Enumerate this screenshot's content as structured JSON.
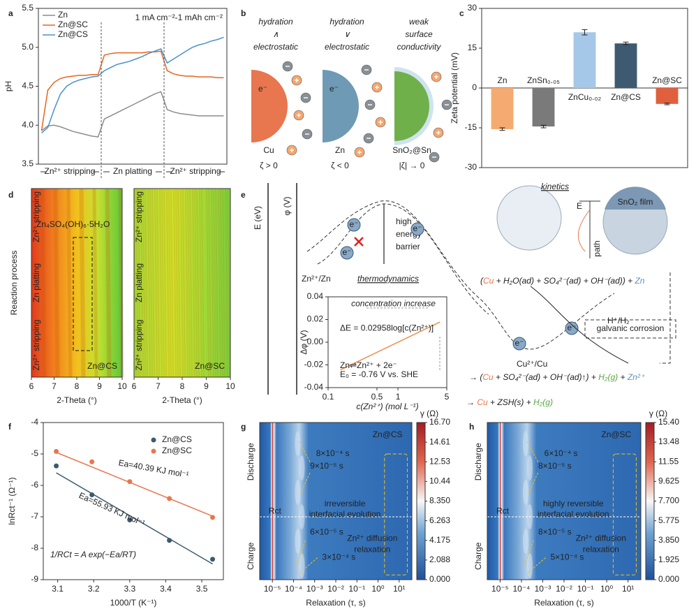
{
  "panel_labels": [
    "a",
    "b",
    "c",
    "d",
    "e",
    "f",
    "g",
    "h"
  ],
  "panel_b": {
    "columns": [
      {
        "top": [
          "hydration",
          "∧",
          "electrostatic"
        ],
        "material": "Cu",
        "zeta": "ζ > 0",
        "color": "#e8764e"
      },
      {
        "top": [
          "hydration",
          "∨",
          "electrostatic"
        ],
        "material": "Zn",
        "zeta": "ζ < 0",
        "color": "#6f9ab5"
      },
      {
        "top": [
          "weak",
          "surface",
          "conductivity"
        ],
        "material": "SnO₂@Sn",
        "zeta": "|ζ| → 0",
        "color": "#6fb04a"
      }
    ],
    "electron": "e⁻"
  },
  "panel_e": {
    "axis_labels": [
      "E (eV)",
      "φ (V)"
    ],
    "barrier": [
      "high",
      "energy",
      "barrier"
    ],
    "couple_zn": "Zn²⁺/Zn",
    "thermodynamics": "thermodynamics",
    "kinetics": "kinetics",
    "film": "SnO₂ film",
    "kinetics_axes": [
      "E",
      "path"
    ],
    "electron": "e⁻",
    "h_couple": "H⁺/H₂",
    "corrosion": "galvanic corrosion",
    "cu_couple": "Cu²⁺/Cu",
    "reaction_1": [
      {
        "text": "(",
        "color": "#222222"
      },
      {
        "text": "Cu",
        "color": "#e8764e"
      },
      {
        "text": " + H₂O(ad) + SO₄²⁻(ad) + OH⁻(ad)) + ",
        "color": "#222222"
      },
      {
        "text": "Zn",
        "color": "#5f8fc0"
      }
    ],
    "reaction_2": [
      {
        "text": "→ (",
        "color": "#222222"
      },
      {
        "text": "Cu",
        "color": "#e8764e"
      },
      {
        "text": " + SO₄²⁻(ad) + OH⁻(ad)↑) + ",
        "color": "#222222"
      },
      {
        "text": "H₂(g)",
        "color": "#5aa843"
      },
      {
        "text": " + ",
        "color": "#222222"
      },
      {
        "text": "Zn²⁺",
        "color": "#5f8fc0"
      }
    ],
    "reaction_3": [
      {
        "text": "→ ",
        "color": "#222222"
      },
      {
        "text": "Cu",
        "color": "#e8764e"
      },
      {
        "text": " + ZSH(s) + ",
        "color": "#222222"
      },
      {
        "text": "H₂(g)",
        "color": "#5aa843"
      }
    ]
  },
  "chart_data": [
    {
      "type": "line",
      "ylabel": "pH",
      "annotation": "1 mA cm⁻²-1 mAh cm⁻²",
      "ylim": [
        3.5,
        5.5
      ],
      "yticks": [
        3.5,
        {
          "value": 4.0,
          "label": "4.0"
        },
        4.5,
        {
          "value": 5.0,
          "label": "5.0"
        },
        5.5
      ],
      "segments": [
        "Zn²⁺ stripping",
        "Zn platting",
        "Zn²⁺ stripping"
      ],
      "legend": "upper left",
      "series": [
        {
          "name": "Zn",
          "color": "#8c8c8c",
          "values": [
            3.93,
            3.99,
            4.0,
            3.98,
            3.95,
            3.92,
            3.9,
            3.88,
            3.86,
            3.85,
            4.08,
            4.12,
            4.16,
            4.2,
            4.24,
            4.28,
            4.32,
            4.36,
            4.4,
            4.43,
            4.2,
            4.17,
            4.15,
            4.14,
            4.13,
            4.12,
            4.12,
            4.12,
            4.12,
            4.12
          ]
        },
        {
          "name": "Zn@SC",
          "color": "#e8641e",
          "values": [
            3.93,
            4.45,
            4.55,
            4.6,
            4.62,
            4.63,
            4.64,
            4.64,
            4.65,
            4.65,
            4.9,
            4.92,
            4.93,
            4.93,
            4.93,
            4.93,
            4.93,
            4.94,
            4.94,
            4.95,
            4.7,
            4.66,
            4.64,
            4.63,
            4.63,
            4.62,
            4.62,
            4.62,
            4.61,
            4.61
          ]
        },
        {
          "name": "Zn@CS",
          "color": "#4a90c8",
          "values": [
            3.9,
            3.97,
            4.2,
            4.4,
            4.5,
            4.55,
            4.58,
            4.6,
            4.62,
            4.63,
            4.7,
            4.74,
            4.78,
            4.8,
            4.82,
            4.85,
            4.88,
            4.92,
            4.95,
            4.98,
            4.8,
            4.85,
            4.9,
            4.95,
            5.0,
            5.03,
            5.05,
            5.08,
            5.1,
            5.13
          ]
        }
      ]
    },
    {
      "type": "bar",
      "ylabel": "Zeta potential (mV)",
      "categories": [
        "Zn",
        "ZnSn₀.₀₅",
        "ZnCu₀.₀₂",
        "Zn@CS",
        "Zn@SC"
      ],
      "values": [
        -15.5,
        -14.5,
        21,
        16.8,
        -6
      ],
      "errors": [
        0.5,
        0.5,
        1,
        0.5,
        0.3
      ],
      "colors": [
        "#f4aa70",
        "#7a7a7a",
        "#a6c8e8",
        "#3d5a70",
        "#e0603e"
      ],
      "ylim": [
        -30,
        30
      ],
      "yticks": [
        -30,
        -15,
        0,
        15,
        30
      ]
    },
    {
      "type": "heatmap",
      "xlabel": "2-Theta (°)",
      "ylabel": "Reaction process",
      "segments": [
        "Zn²⁺ stripping",
        "Zn platting",
        "Zn²⁺ stripping"
      ],
      "xlim": [
        6,
        10
      ],
      "xticks": [
        6,
        7,
        8,
        9,
        10
      ],
      "annotations": [
        "Zn₄SO₄(OH)₆·5H₂O",
        "Zn@CS"
      ]
    },
    {
      "type": "heatmap",
      "xlabel": "2-Theta (°)",
      "segments": [
        "Zn²⁺ stripping",
        "Zn platting",
        "Zn²⁺ stripping"
      ],
      "xlim": [
        6,
        10
      ],
      "xticks": [
        6,
        7,
        8,
        9,
        10
      ],
      "annotations": [
        "Zn@SC"
      ]
    },
    {
      "type": "line",
      "xlog": true,
      "xlabel": "c(Zn²⁺) (mol L⁻¹)",
      "ylabel": "Δφ (V)",
      "xlim": [
        0.1,
        5
      ],
      "xticks": [
        0.1,
        0.5,
        1,
        5
      ],
      "ylim": [
        -0.04,
        0.04
      ],
      "yticks": [
        -0.04,
        -0.02,
        {
          "value": 0,
          "label": "0.00"
        },
        0.02,
        0.04
      ],
      "annotations": [
        "concentration increase",
        "ΔE = 0.02958log[c(Zn²⁺)]",
        "Zn⇌Zn²⁺ + 2e⁻",
        "E₀ = -0.76 V vs. SHE"
      ],
      "series": [
        {
          "color": "#e8904e",
          "x": [
            0.15,
            4
          ],
          "values": [
            -0.0244,
            0.0178
          ]
        }
      ]
    },
    {
      "type": "scatter",
      "xlabel": "1000/T (K⁻¹)",
      "ylabel": "lnRct⁻¹ (Ω⁻¹)",
      "legend": "upper right",
      "xlim": [
        3.06,
        3.56
      ],
      "xticks": [
        3.1,
        3.2,
        3.3,
        3.4,
        3.5
      ],
      "ylim": [
        -9,
        -4
      ],
      "yticks": [
        -9,
        -8,
        -7,
        -6,
        -5,
        -4
      ],
      "annotations": [
        "Ea=40.39 KJ mol⁻¹",
        "Ea=55.93 KJ mol⁻¹",
        "1/RCt = A exp(−Ea/RT)"
      ],
      "series": [
        {
          "name": "Zn@CS",
          "color": "#3c5a6e",
          "x": [
            3.096,
            3.195,
            3.3,
            3.41,
            3.53
          ],
          "values": [
            -5.38,
            -6.3,
            -7.1,
            -7.75,
            -8.35
          ],
          "fit": {
            "x": [
              3.096,
              3.53
            ],
            "values": [
              -5.6,
              -8.5
            ]
          }
        },
        {
          "name": "Zn@SC",
          "color": "#e8764e",
          "x": [
            3.096,
            3.195,
            3.3,
            3.41,
            3.53
          ],
          "values": [
            -4.92,
            -5.25,
            -5.88,
            -6.42,
            -7.02
          ],
          "fit": {
            "x": [
              3.096,
              3.53
            ],
            "values": [
              -4.95,
              -6.98
            ]
          }
        }
      ]
    },
    {
      "type": "heatmap",
      "xlog": true,
      "xlabel": "Relaxation (τ, s)",
      "ylabels": [
        "Discharge",
        "Charge"
      ],
      "xlim": [
        2.5e-06,
        40
      ],
      "xticks": [
        {
          "value": 1e-05,
          "label": "10⁻⁵"
        },
        {
          "value": 0.0001,
          "label": "10⁻⁴"
        },
        {
          "value": 0.001,
          "label": "10⁻³"
        },
        {
          "value": 0.01,
          "label": "10⁻²"
        },
        {
          "value": 0.1,
          "label": "10⁻¹"
        },
        {
          "value": 1,
          "label": "10⁰"
        },
        {
          "value": 10,
          "label": "10¹"
        }
      ],
      "annotations": [
        "Zn@CS",
        "8×10⁻⁴ s",
        "9×10⁻⁵ s",
        "Rct",
        "irreversible",
        "interfacial evolution",
        "Zn²⁺ diffusion",
        "relaxation",
        "6×10⁻⁵ s",
        "3×10⁻⁴ s"
      ],
      "ctitle": "γ (Ω)",
      "clim": [
        0,
        16.7
      ],
      "cticks": [
        {
          "value": 0,
          "label": "0.000"
        },
        {
          "value": 2.088,
          "label": "2.088"
        },
        {
          "value": 4.175,
          "label": "4.175"
        },
        {
          "value": 6.263,
          "label": "6.263"
        },
        {
          "value": 8.35,
          "label": "8.350"
        },
        {
          "value": 10.44,
          "label": "10.44"
        },
        {
          "value": 12.53,
          "label": "12.53"
        },
        {
          "value": 14.61,
          "label": "14.61"
        },
        {
          "value": 16.7,
          "label": "16.70"
        }
      ]
    },
    {
      "type": "heatmap",
      "xlog": true,
      "xlabel": "Relaxation (τ, s)",
      "ylabels": [
        "Discharge",
        "Charge"
      ],
      "xlim": [
        2.5e-06,
        40
      ],
      "xticks": [
        {
          "value": 1e-05,
          "label": "10⁻⁵"
        },
        {
          "value": 0.0001,
          "label": "10⁻⁴"
        },
        {
          "value": 0.001,
          "label": "10⁻³"
        },
        {
          "value": 0.01,
          "label": "10⁻²"
        },
        {
          "value": 0.1,
          "label": "10⁻¹"
        },
        {
          "value": 1,
          "label": "10⁰"
        },
        {
          "value": 10,
          "label": "10¹"
        }
      ],
      "annotations": [
        "Zn@SC",
        "6×10⁻⁴ s",
        "8×10⁻⁵ s",
        "Rct",
        "highly reversible",
        "interfacial evolution",
        "Zn²⁺ diffusion",
        "relaxation",
        "8×10⁻⁵ s",
        "5×10⁻⁴ s"
      ],
      "ctitle": "γ (Ω)",
      "clim": [
        0,
        15.4
      ],
      "cticks": [
        {
          "value": 0,
          "label": "0.000"
        },
        {
          "value": 1.925,
          "label": "1.925"
        },
        {
          "value": 3.85,
          "label": "3.850"
        },
        {
          "value": 5.775,
          "label": "5.775"
        },
        {
          "value": 7.7,
          "label": "7.700"
        },
        {
          "value": 9.625,
          "label": "9.625"
        },
        {
          "value": 11.55,
          "label": "11.55"
        },
        {
          "value": 13.48,
          "label": "13.48"
        },
        {
          "value": 15.4,
          "label": "15.40"
        }
      ]
    }
  ]
}
